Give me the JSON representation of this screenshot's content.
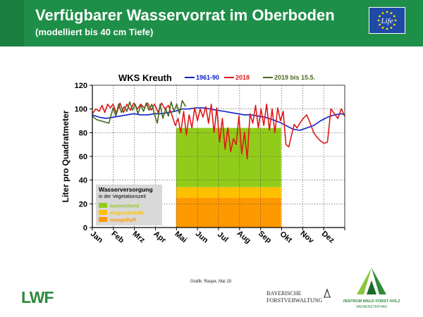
{
  "header": {
    "title": "Verfügbarer Wasservorrat im Oberboden",
    "subtitle": "(modelliert bis 40 cm Tiefe)",
    "eu_logo_text": "Life"
  },
  "footer": {
    "credit": "Grafik: Raspe, Mai 19",
    "lwf_logo": "LWF",
    "bf_line1": "BAYERISCHE",
    "bf_line2": "FORSTVERWALTUNG",
    "zwfh_line1": "ZENTRUM WALD FORST HOLZ",
    "zwfh_line2": "WEIHENSTEPHAN"
  },
  "chart_data": {
    "type": "line",
    "title": "WKS Kreuth",
    "xlabel": "",
    "ylabel": "Liter pro Quadratmeter",
    "ylim": [
      0,
      120
    ],
    "yticks": [
      0,
      20,
      40,
      60,
      80,
      100,
      120
    ],
    "x_unit": "day of year",
    "xlim": [
      0,
      365
    ],
    "month_labels": [
      "Jan",
      "Feb",
      "Mrz",
      "Apr",
      "Mai",
      "Jun",
      "Jul",
      "Aug",
      "Sep",
      "Okt",
      "Nov",
      "Dez"
    ],
    "grid": true,
    "legend_position": "top",
    "series": [
      {
        "name": "1961-90",
        "color": "#1020c8",
        "x": [
          0,
          10,
          20,
          30,
          40,
          50,
          60,
          70,
          80,
          90,
          100,
          110,
          120,
          130,
          140,
          150,
          160,
          170,
          180,
          190,
          200,
          210,
          220,
          230,
          240,
          250,
          260,
          270,
          280,
          290,
          300,
          310,
          320,
          330,
          340,
          350,
          360,
          365
        ],
        "y": [
          95,
          93,
          92,
          93,
          94,
          95,
          96,
          95,
          95,
          96,
          96,
          97,
          98,
          100,
          100,
          101,
          101,
          100,
          99,
          98,
          97,
          96,
          95,
          95,
          94,
          93,
          91,
          89,
          86,
          83,
          82,
          84,
          86,
          90,
          93,
          95,
          96,
          95
        ]
      },
      {
        "name": "2018",
        "color": "#e01818",
        "x": [
          0,
          5,
          10,
          14,
          18,
          22,
          26,
          30,
          35,
          40,
          45,
          50,
          55,
          60,
          65,
          70,
          75,
          80,
          85,
          90,
          95,
          100,
          105,
          110,
          115,
          120,
          124,
          128,
          132,
          136,
          140,
          144,
          148,
          152,
          156,
          160,
          164,
          168,
          172,
          176,
          180,
          184,
          188,
          192,
          196,
          200,
          204,
          208,
          212,
          216,
          220,
          224,
          228,
          232,
          236,
          240,
          244,
          248,
          252,
          256,
          260,
          264,
          268,
          272,
          276,
          280,
          284,
          288,
          292,
          296,
          300,
          305,
          310,
          315,
          320,
          325,
          330,
          335,
          340,
          345,
          350,
          355,
          360,
          365
        ],
        "y": [
          96,
          100,
          98,
          103,
          97,
          104,
          101,
          104,
          96,
          105,
          97,
          104,
          99,
          105,
          100,
          104,
          101,
          105,
          99,
          104,
          97,
          105,
          100,
          103,
          95,
          86,
          92,
          80,
          98,
          78,
          95,
          84,
          101,
          90,
          100,
          93,
          102,
          88,
          104,
          80,
          101,
          72,
          92,
          66,
          84,
          64,
          75,
          70,
          94,
          62,
          80,
          58,
          96,
          88,
          103,
          84,
          100,
          86,
          104,
          82,
          100,
          80,
          101,
          90,
          98,
          70,
          68,
          78,
          87,
          84,
          88,
          92,
          95,
          88,
          80,
          76,
          73,
          71,
          72,
          100,
          96,
          92,
          100,
          94
        ]
      },
      {
        "name": "2019 bis 15.5.",
        "color": "#4a6a22",
        "x": [
          0,
          6,
          12,
          18,
          24,
          30,
          34,
          38,
          42,
          46,
          50,
          54,
          58,
          62,
          66,
          70,
          74,
          78,
          82,
          86,
          90,
          94,
          98,
          102,
          106,
          110,
          114,
          118,
          122,
          126,
          130,
          135
        ],
        "y": [
          94,
          91,
          90,
          89,
          88,
          101,
          94,
          104,
          97,
          102,
          98,
          106,
          99,
          104,
          96,
          103,
          98,
          105,
          99,
          104,
          95,
          88,
          104,
          92,
          100,
          94,
          106,
          98,
          104,
          96,
          107,
          102
        ]
      }
    ],
    "bands": {
      "x_range": [
        121,
        273
      ],
      "legend_title": "Wasserversorgung",
      "legend_subtitle": "in der Vegetationszeit",
      "items": [
        {
          "label": "ausreichend",
          "from": 34,
          "to": 84,
          "color": "#92cc1a"
        },
        {
          "label": "eingeschränkt",
          "from": 25,
          "to": 34,
          "color": "#ffc000"
        },
        {
          "label": "mangelhaft",
          "from": 0,
          "to": 25,
          "color": "#ff9900"
        }
      ]
    }
  }
}
